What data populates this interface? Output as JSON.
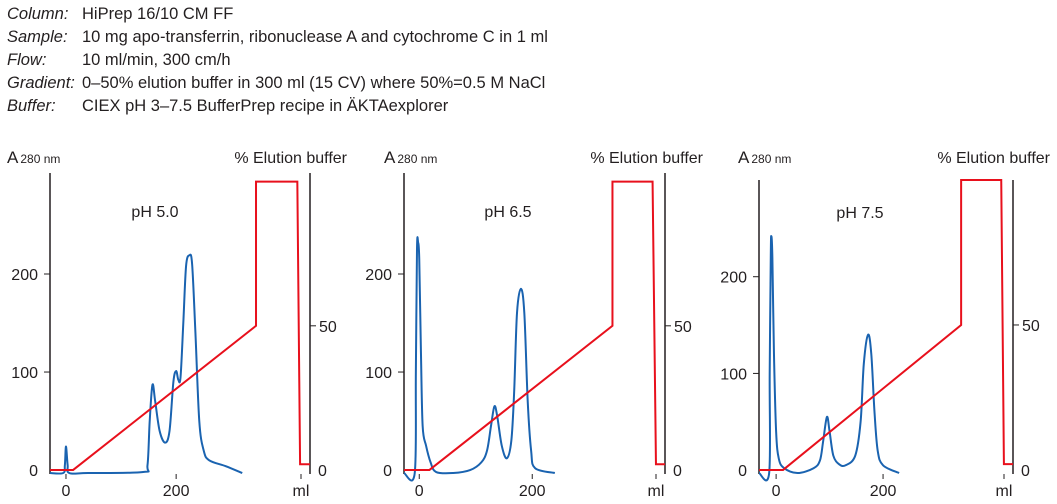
{
  "conditions": [
    {
      "label": "Column:",
      "value": "HiPrep 16/10 CM FF"
    },
    {
      "label": "Sample:",
      "value": "10 mg apo-transferrin, ribonuclease A and cytochrome C in 1 ml"
    },
    {
      "label": "Flow:",
      "value": "10 ml/min, 300 cm/h"
    },
    {
      "label": "Gradient:",
      "value": "0–50% elution buffer in 300 ml (15 CV) where 50%=0.5 M NaCl"
    },
    {
      "label": "Buffer:",
      "value": "CIEX pH 3–7.5 BufferPrep recipe in ÄKTAexplorer"
    }
  ],
  "colors": {
    "absorbance": "#1a63b0",
    "gradient": "#e8101c",
    "axis": "#231f20"
  },
  "chart_data": [
    {
      "type": "line",
      "title": "pH 5.0",
      "ylabel_main": "A",
      "ylabel_sub": "280 nm",
      "y2label": "% Elution buffer",
      "xlabel": "ml",
      "xticks": [
        {
          "v": 0,
          "label": "0"
        },
        {
          "v": 200,
          "label": "200"
        }
      ],
      "yticks": [
        {
          "v": 0,
          "label": "0"
        },
        {
          "v": 100,
          "label": "100"
        },
        {
          "v": 200,
          "label": "200"
        }
      ],
      "y2ticks": [
        {
          "v": 0,
          "label": "0"
        },
        {
          "v": 50,
          "label": "50"
        }
      ],
      "xlim": [
        -29,
        443
      ],
      "ylim": [
        -4,
        303
      ],
      "y2lim": [
        -1.4,
        103
      ],
      "grid": false,
      "series": [
        {
          "axis": "left",
          "points": [
            [
              -29,
              -3
            ],
            [
              -5,
              -3
            ],
            [
              -2,
              5
            ],
            [
              0,
              24
            ],
            [
              3,
              5
            ],
            [
              6,
              -3
            ],
            [
              40,
              -3
            ],
            [
              140,
              -2
            ],
            [
              148,
              5
            ],
            [
              152,
              50
            ],
            [
              157,
              87
            ],
            [
              162,
              70
            ],
            [
              170,
              40
            ],
            [
              180,
              28
            ],
            [
              188,
              40
            ],
            [
              195,
              90
            ],
            [
              200,
              101
            ],
            [
              204,
              92
            ],
            [
              208,
              95
            ],
            [
              213,
              150
            ],
            [
              218,
              208
            ],
            [
              224,
              219
            ],
            [
              229,
              210
            ],
            [
              235,
              140
            ],
            [
              242,
              50
            ],
            [
              250,
              20
            ],
            [
              260,
              10
            ],
            [
              290,
              4
            ],
            [
              320,
              -3
            ]
          ]
        },
        {
          "axis": "right",
          "points": [
            [
              -29,
              0
            ],
            [
              13,
              0
            ],
            [
              345,
              50
            ],
            [
              345,
              100
            ],
            [
              420,
              100
            ],
            [
              425,
              2
            ],
            [
              443,
              2
            ]
          ]
        }
      ]
    },
    {
      "type": "line",
      "title": "pH 6.5",
      "ylabel_main": "A",
      "ylabel_sub": "280 nm",
      "y2label": "% Elution buffer",
      "xlabel": "ml",
      "xticks": [
        {
          "v": 0,
          "label": "0"
        },
        {
          "v": 200,
          "label": "200"
        }
      ],
      "yticks": [
        {
          "v": 0,
          "label": "0"
        },
        {
          "v": 100,
          "label": "100"
        },
        {
          "v": 200,
          "label": "200"
        }
      ],
      "y2ticks": [
        {
          "v": 0,
          "label": "0"
        },
        {
          "v": 50,
          "label": "50"
        }
      ],
      "xlim": [
        -27,
        435
      ],
      "ylim": [
        -4,
        303
      ],
      "y2lim": [
        -1.4,
        103
      ],
      "grid": false,
      "series": [
        {
          "axis": "left",
          "points": [
            [
              -27,
              -3
            ],
            [
              -8,
              -3
            ],
            [
              -6,
              100
            ],
            [
              -4,
              225
            ],
            [
              -2,
              232
            ],
            [
              0,
              215
            ],
            [
              3,
              120
            ],
            [
              6,
              45
            ],
            [
              12,
              25
            ],
            [
              20,
              8
            ],
            [
              30,
              -2
            ],
            [
              60,
              -3
            ],
            [
              90,
              0
            ],
            [
              110,
              8
            ],
            [
              120,
              20
            ],
            [
              127,
              45
            ],
            [
              133,
              65
            ],
            [
              138,
              55
            ],
            [
              146,
              25
            ],
            [
              155,
              12
            ],
            [
              163,
              30
            ],
            [
              168,
              80
            ],
            [
              173,
              160
            ],
            [
              180,
              185
            ],
            [
              186,
              160
            ],
            [
              192,
              70
            ],
            [
              198,
              20
            ],
            [
              205,
              2
            ],
            [
              240,
              -3
            ]
          ]
        },
        {
          "axis": "right",
          "points": [
            [
              -27,
              0
            ],
            [
              18,
              0
            ],
            [
              342,
              50
            ],
            [
              342,
              100
            ],
            [
              413,
              100
            ],
            [
              419,
              2
            ],
            [
              435,
              2
            ]
          ]
        }
      ]
    },
    {
      "type": "line",
      "title": "pH 7.5",
      "ylabel_main": "A",
      "ylabel_sub": "280 nm",
      "y2label": "% Elution buffer",
      "xlabel": "ml",
      "xticks": [
        {
          "v": 0,
          "label": "0"
        },
        {
          "v": 200,
          "label": "200"
        }
      ],
      "yticks": [
        {
          "v": 0,
          "label": "0"
        },
        {
          "v": 100,
          "label": "100"
        },
        {
          "v": 200,
          "label": "200"
        }
      ],
      "y2ticks": [
        {
          "v": 0,
          "label": "0"
        },
        {
          "v": 50,
          "label": "50"
        }
      ],
      "xlim": [
        -32,
        443
      ],
      "ylim": [
        -4,
        300
      ],
      "y2lim": [
        -1.4,
        100
      ],
      "grid": false,
      "series": [
        {
          "axis": "left",
          "points": [
            [
              -32,
              -3
            ],
            [
              -13,
              -3
            ],
            [
              -12,
              100
            ],
            [
              -10,
              220
            ],
            [
              -9,
              242
            ],
            [
              -7,
              220
            ],
            [
              -4,
              120
            ],
            [
              0,
              40
            ],
            [
              5,
              12
            ],
            [
              15,
              2
            ],
            [
              40,
              -3
            ],
            [
              70,
              2
            ],
            [
              82,
              10
            ],
            [
              88,
              30
            ],
            [
              95,
              55
            ],
            [
              100,
              40
            ],
            [
              107,
              15
            ],
            [
              118,
              6
            ],
            [
              130,
              5
            ],
            [
              148,
              15
            ],
            [
              158,
              50
            ],
            [
              164,
              110
            ],
            [
              172,
              140
            ],
            [
              178,
              120
            ],
            [
              184,
              60
            ],
            [
              190,
              20
            ],
            [
              200,
              5
            ],
            [
              230,
              -3
            ]
          ]
        },
        {
          "axis": "right",
          "points": [
            [
              -32,
              0
            ],
            [
              13,
              0
            ],
            [
              346,
              50
            ],
            [
              346,
              100
            ],
            [
              421,
              100
            ],
            [
              426,
              2
            ],
            [
              443,
              2
            ]
          ]
        }
      ]
    }
  ]
}
